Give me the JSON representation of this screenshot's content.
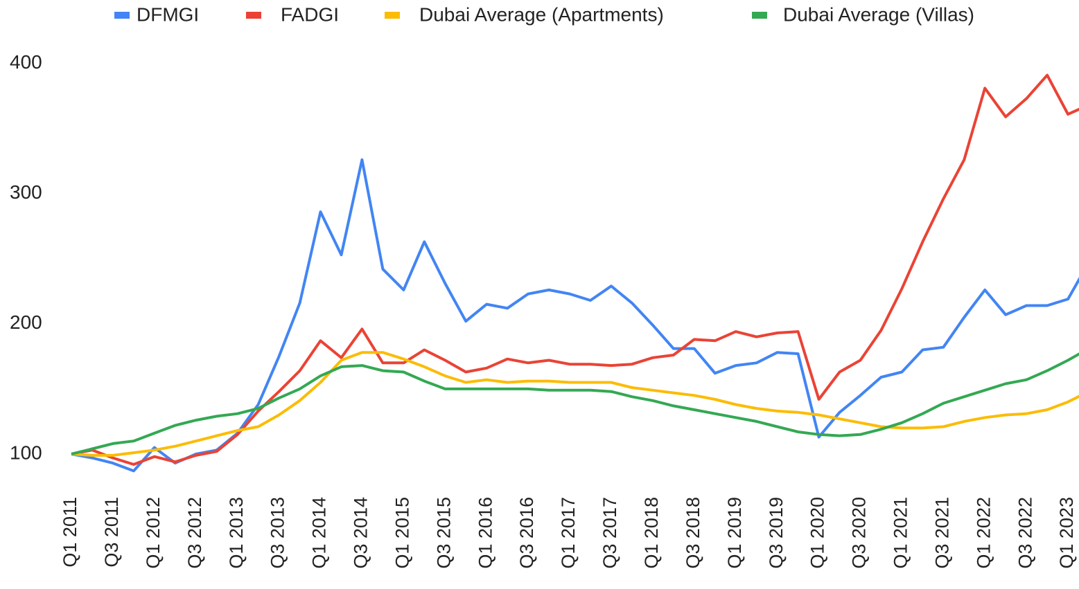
{
  "chart_data": {
    "type": "line",
    "categories": [
      "Q1 2011",
      null,
      "Q3 2011",
      null,
      "Q1 2012",
      null,
      "Q3 2012",
      null,
      "Q1 2013",
      null,
      "Q3 2013",
      null,
      "Q1 2014",
      null,
      "Q3 2014",
      null,
      "Q1 2015",
      null,
      "Q3 2015",
      null,
      "Q1 2016",
      null,
      "Q3 2016",
      null,
      "Q1 2017",
      null,
      "Q3 2017",
      null,
      "Q1 2018",
      null,
      "Q3 2018",
      null,
      "Q1 2019",
      null,
      "Q3 2019",
      null,
      "Q1 2020",
      null,
      "Q3 2020",
      null,
      "Q1 2021",
      null,
      "Q3 2021",
      null,
      "Q1 2022",
      null,
      "Q3 2022",
      null,
      "Q1 2023",
      null
    ],
    "series": [
      {
        "name": "DFMGI",
        "color": "#4285f4",
        "values": [
          100,
          97,
          93,
          87,
          105,
          93,
          100,
          103,
          116,
          138,
          175,
          216,
          286,
          253,
          326,
          242,
          226,
          263,
          231,
          202,
          215,
          212,
          223,
          226,
          223,
          218,
          229,
          216,
          199,
          181,
          181,
          162,
          168,
          170,
          178,
          177,
          113,
          132,
          145,
          159,
          163,
          180,
          182,
          205,
          226,
          207,
          214,
          214,
          219,
          247
        ]
      },
      {
        "name": "FADGI",
        "color": "#ea4335",
        "values": [
          100,
          103,
          97,
          92,
          98,
          94,
          99,
          102,
          115,
          133,
          148,
          164,
          187,
          174,
          196,
          170,
          170,
          180,
          172,
          163,
          166,
          173,
          170,
          172,
          169,
          169,
          168,
          169,
          174,
          176,
          188,
          187,
          194,
          190,
          193,
          194,
          142,
          163,
          172,
          195,
          227,
          263,
          296,
          326,
          381,
          359,
          373,
          391,
          361,
          368
        ]
      },
      {
        "name": "Dubai Average (Apartments)",
        "color": "#fbbc04",
        "values": [
          100,
          99,
          99,
          101,
          103,
          106,
          110,
          114,
          118,
          121,
          130,
          141,
          155,
          172,
          178,
          178,
          173,
          167,
          160,
          155,
          157,
          155,
          156,
          156,
          155,
          155,
          155,
          151,
          149,
          147,
          145,
          142,
          138,
          135,
          133,
          132,
          130,
          127,
          124,
          121,
          120,
          120,
          121,
          125,
          128,
          130,
          131,
          134,
          140,
          148
        ]
      },
      {
        "name": "Dubai Average (Villas)",
        "color": "#34a853",
        "values": [
          100,
          104,
          108,
          110,
          116,
          122,
          126,
          129,
          131,
          135,
          143,
          150,
          160,
          167,
          168,
          164,
          163,
          156,
          150,
          150,
          150,
          150,
          150,
          149,
          149,
          149,
          148,
          144,
          141,
          137,
          134,
          131,
          128,
          125,
          121,
          117,
          115,
          114,
          115,
          119,
          124,
          131,
          139,
          144,
          149,
          154,
          157,
          164,
          172,
          181
        ]
      }
    ],
    "ylim": [
      80,
      420
    ],
    "yticks": [
      100,
      200,
      300,
      400
    ],
    "legend": "top"
  }
}
